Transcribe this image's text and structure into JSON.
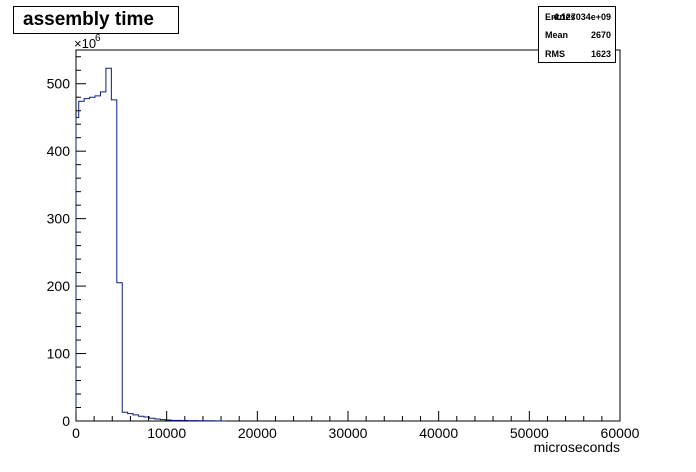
{
  "chart_data": {
    "type": "histogram",
    "title": "assembly time",
    "xlabel": "microseconds",
    "ylabel": "",
    "y_multiplier": "×10",
    "y_multiplier_exponent": "6",
    "xlim": [
      0,
      60000
    ],
    "ylim": [
      0,
      550
    ],
    "x_ticks": [
      "0",
      "10000",
      "20000",
      "30000",
      "40000",
      "50000",
      "60000"
    ],
    "y_ticks": [
      "0",
      "100",
      "200",
      "300",
      "400",
      "500"
    ],
    "bin_width": 600,
    "bins": [
      {
        "x0": 0,
        "y": 450
      },
      {
        "x0": 300,
        "y": 474
      },
      {
        "x0": 900,
        "y": 478
      },
      {
        "x0": 1500,
        "y": 480
      },
      {
        "x0": 2100,
        "y": 482
      },
      {
        "x0": 2700,
        "y": 488
      },
      {
        "x0": 3300,
        "y": 523
      },
      {
        "x0": 3900,
        "y": 476
      },
      {
        "x0": 4500,
        "y": 205
      },
      {
        "x0": 5100,
        "y": 13
      },
      {
        "x0": 5700,
        "y": 11
      },
      {
        "x0": 6300,
        "y": 9
      },
      {
        "x0": 6900,
        "y": 7
      },
      {
        "x0": 7500,
        "y": 6
      },
      {
        "x0": 8100,
        "y": 4
      },
      {
        "x0": 8700,
        "y": 3
      },
      {
        "x0": 9300,
        "y": 2
      },
      {
        "x0": 9900,
        "y": 1.5
      },
      {
        "x0": 10500,
        "y": 1
      },
      {
        "x0": 11100,
        "y": 1
      },
      {
        "x0": 11700,
        "y": 0.8
      },
      {
        "x0": 12300,
        "y": 0.6
      },
      {
        "x0": 12900,
        "y": 0.5
      },
      {
        "x0": 13500,
        "y": 0.4
      },
      {
        "x0": 14100,
        "y": 0.3
      },
      {
        "x0": 14700,
        "y": 0.3
      },
      {
        "x0": 15300,
        "y": 0.2
      },
      {
        "x0": 15900,
        "y": 0
      }
    ],
    "line_color": "#0b1f7a",
    "grid": false,
    "stats": [
      {
        "key": "Entries",
        "value": "4.127034e+09"
      },
      {
        "key": "Mean",
        "value": "2670"
      },
      {
        "key": "RMS",
        "value": "1623"
      }
    ]
  }
}
